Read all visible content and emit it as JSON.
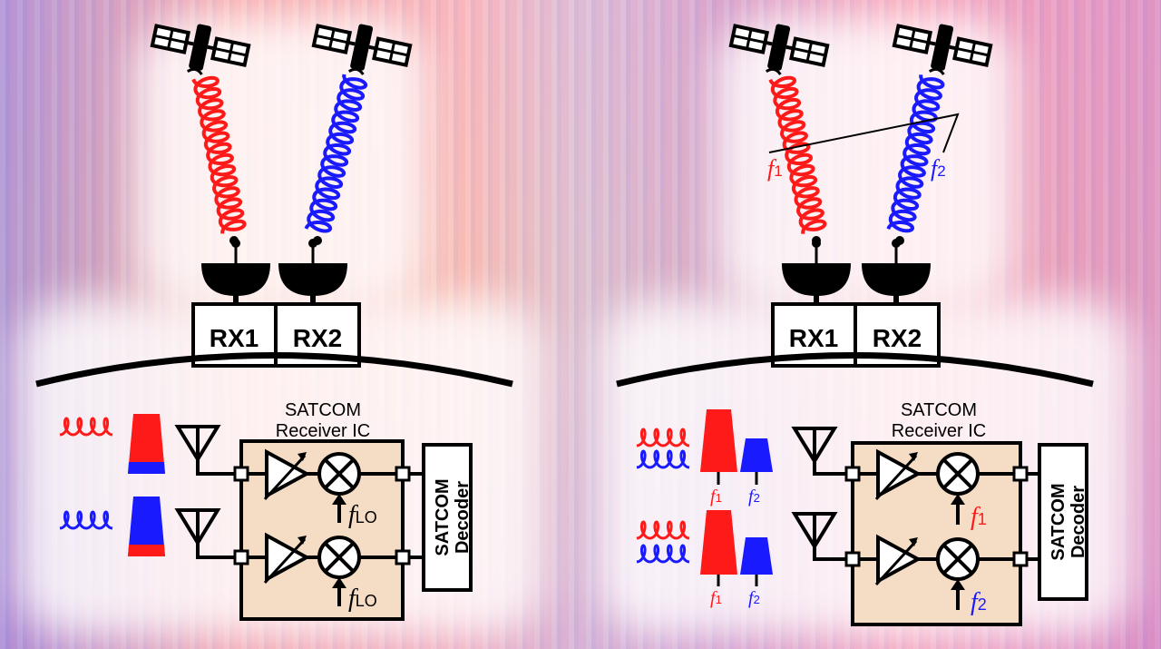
{
  "left": {
    "receivers": [
      "RX1",
      "RX2"
    ],
    "ic_title": "SATCOM\nReceiver IC",
    "decoder": "SATCOM Decoder",
    "lo_symbol": "f",
    "lo_sub": "LO"
  },
  "right": {
    "receivers": [
      "RX1",
      "RX2"
    ],
    "ic_title": "SATCOM\nReceiver IC",
    "decoder": "SATCOM Decoder",
    "freq_symbol": "f",
    "f1_sub": "1",
    "f2_sub": "2"
  },
  "colors": {
    "red": "#ff1a1a",
    "blue": "#1a1aff",
    "ic_fill": "#f5dcc4"
  }
}
